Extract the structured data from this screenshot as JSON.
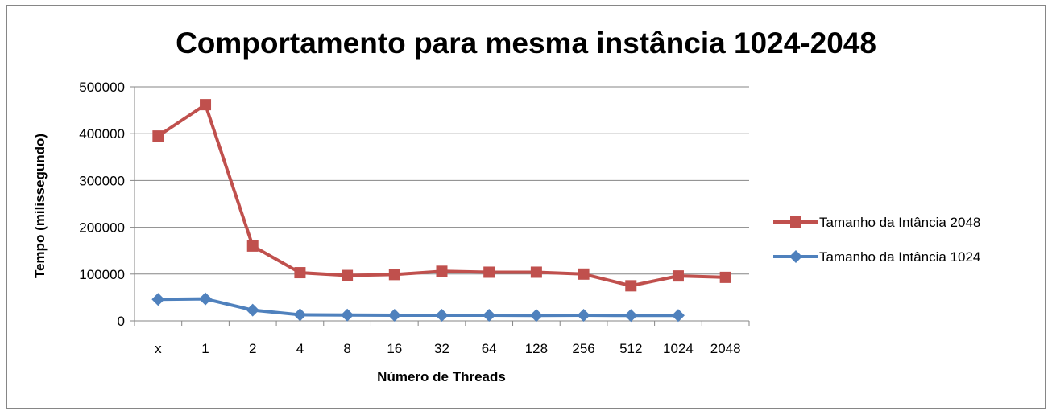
{
  "chart_data": {
    "type": "line",
    "title": "Comportamento para mesma instância 1024-2048",
    "xlabel": "Número de Threads",
    "ylabel": "Tempo (milissegundo)",
    "categories": [
      "x",
      "1",
      "2",
      "4",
      "8",
      "16",
      "32",
      "64",
      "128",
      "256",
      "512",
      "1024",
      "2048"
    ],
    "ylim": [
      0,
      500000
    ],
    "yticks": [
      "0",
      "100000",
      "200000",
      "300000",
      "400000",
      "500000"
    ],
    "grid": true,
    "legend_position": "right",
    "series": [
      {
        "name": "Tamanho da Intância 2048",
        "color": "#c0504d",
        "marker": "square",
        "values": [
          395000,
          462000,
          160000,
          103000,
          97000,
          99000,
          106000,
          104000,
          104000,
          100000,
          75000,
          96000,
          93000
        ]
      },
      {
        "name": "Tamanho da Intância 1024",
        "color": "#4f81bd",
        "marker": "diamond",
        "values": [
          46000,
          47000,
          23000,
          13000,
          12500,
          12000,
          12000,
          12000,
          11500,
          12000,
          11500,
          11500,
          null
        ]
      }
    ]
  }
}
